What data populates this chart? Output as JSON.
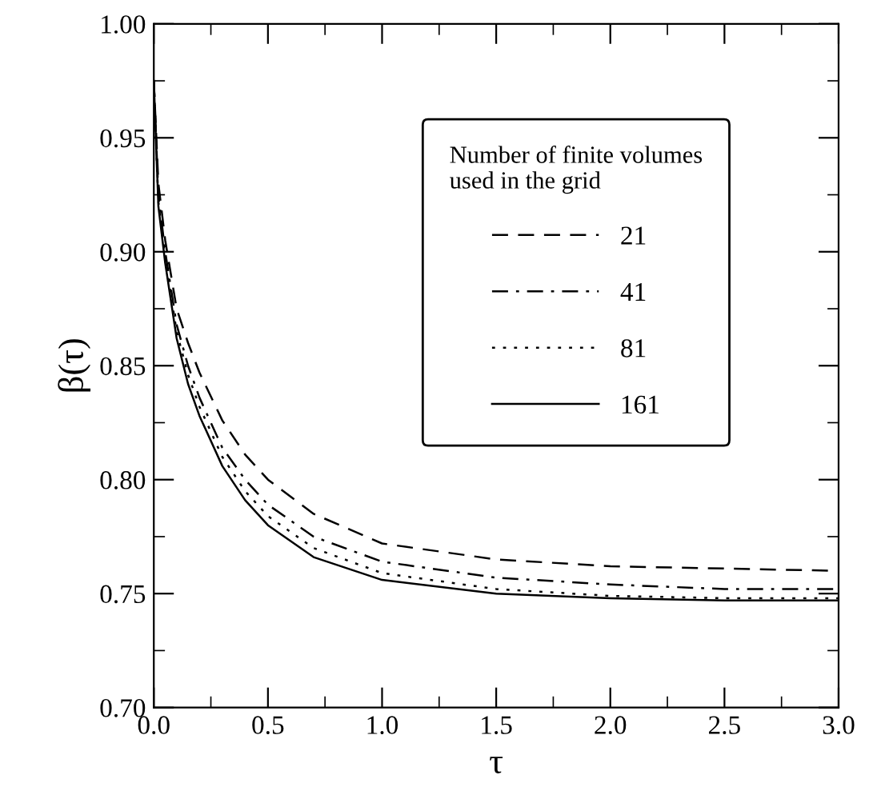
{
  "chart_data": {
    "type": "line",
    "xlabel": "τ",
    "ylabel": "β(τ)",
    "legend_title": "Number of finite volumes\nused in the grid",
    "legend": "top right",
    "xlim": [
      0,
      3
    ],
    "ylim": [
      0.7,
      1.0
    ],
    "xticks": [
      {
        "value": 0,
        "label": "0.0"
      },
      {
        "value": 0.25,
        "label": null
      },
      {
        "value": 0.5,
        "label": "0.5"
      },
      {
        "value": 0.75,
        "label": null
      },
      {
        "value": 1,
        "label": "1.0"
      },
      {
        "value": 1.25,
        "label": null
      },
      {
        "value": 1.5,
        "label": "1.5"
      },
      {
        "value": 1.75,
        "label": null
      },
      {
        "value": 2,
        "label": "2.0"
      },
      {
        "value": 2.25,
        "label": null
      },
      {
        "value": 2.5,
        "label": "2.5"
      },
      {
        "value": 2.75,
        "label": null
      },
      {
        "value": 3,
        "label": "3.0"
      }
    ],
    "yticks": [
      {
        "value": 0.7,
        "label": "0.70"
      },
      {
        "value": 0.725,
        "label": null
      },
      {
        "value": 0.75,
        "label": "0.75"
      },
      {
        "value": 0.775,
        "label": null
      },
      {
        "value": 0.8,
        "label": "0.80"
      },
      {
        "value": 0.825,
        "label": null
      },
      {
        "value": 0.85,
        "label": "0.85"
      },
      {
        "value": 0.875,
        "label": null
      },
      {
        "value": 0.9,
        "label": "0.90"
      },
      {
        "value": 0.925,
        "label": null
      },
      {
        "value": 0.95,
        "label": "0.95"
      },
      {
        "value": 0.975,
        "label": null
      },
      {
        "value": 1.0,
        "label": "1.00"
      }
    ],
    "x": [
      0,
      0.02,
      0.05,
      0.1,
      0.15,
      0.2,
      0.3,
      0.4,
      0.5,
      0.7,
      1.0,
      1.5,
      2.0,
      2.5,
      3.0
    ],
    "series": [
      {
        "name": "21",
        "color": "#000000",
        "line_style": "dashed",
        "values": [
          0.975,
          0.93,
          0.905,
          0.875,
          0.86,
          0.847,
          0.826,
          0.811,
          0.8,
          0.785,
          0.772,
          0.765,
          0.762,
          0.761,
          0.76
        ]
      },
      {
        "name": "41",
        "color": "#000000",
        "line_style": "dashdot",
        "values": [
          0.975,
          0.925,
          0.9,
          0.868,
          0.85,
          0.836,
          0.814,
          0.8,
          0.789,
          0.775,
          0.764,
          0.757,
          0.754,
          0.752,
          0.752
        ]
      },
      {
        "name": "81",
        "color": "#000000",
        "line_style": "dotted",
        "values": [
          0.975,
          0.922,
          0.897,
          0.865,
          0.846,
          0.832,
          0.81,
          0.795,
          0.784,
          0.77,
          0.759,
          0.752,
          0.749,
          0.748,
          0.748
        ]
      },
      {
        "name": "161",
        "color": "#000000",
        "line_style": "solid",
        "values": [
          0.975,
          0.92,
          0.895,
          0.862,
          0.842,
          0.828,
          0.806,
          0.791,
          0.78,
          0.766,
          0.756,
          0.75,
          0.748,
          0.747,
          0.747
        ]
      }
    ]
  }
}
